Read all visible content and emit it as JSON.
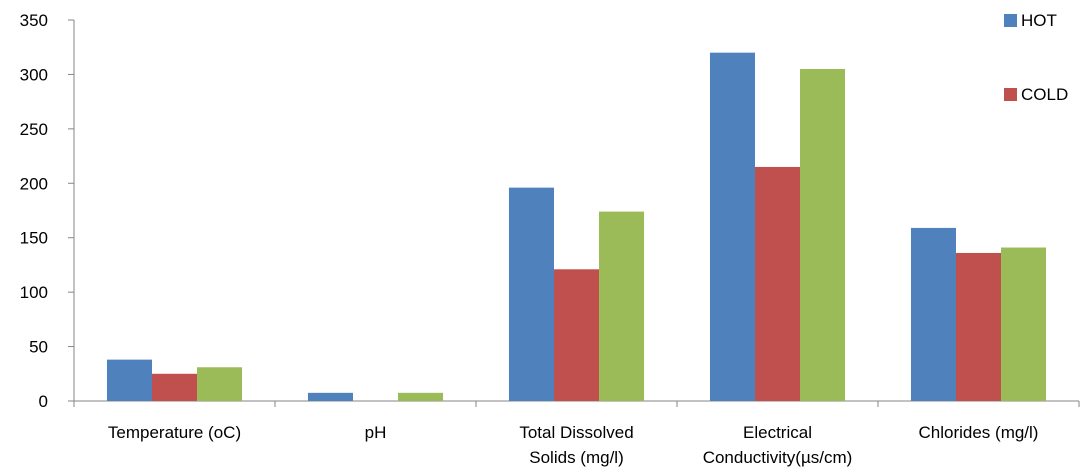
{
  "chart_data": {
    "type": "bar",
    "categories": [
      [
        "Temperature (oC)"
      ],
      [
        "pH"
      ],
      [
        "Total Dissolved",
        "Solids (mg/l)"
      ],
      [
        "Electrical",
        "Conductivity(µs/cm)"
      ],
      [
        "Chlorides (mg/l)"
      ]
    ],
    "series": [
      {
        "name": "HOT",
        "color": "#4f81bd",
        "values": [
          38,
          7.5,
          196,
          320,
          159
        ]
      },
      {
        "name": "COLD",
        "color": "#c0504d",
        "values": [
          25,
          0,
          121,
          215,
          136
        ]
      },
      {
        "name": "",
        "color": "#9bbb59",
        "values": [
          31,
          7.5,
          174,
          305,
          141
        ]
      }
    ],
    "yticks": [
      0,
      50,
      100,
      150,
      200,
      250,
      300,
      350
    ],
    "ylim": [
      0,
      350
    ],
    "legend_position": "top-right",
    "grid": false
  }
}
